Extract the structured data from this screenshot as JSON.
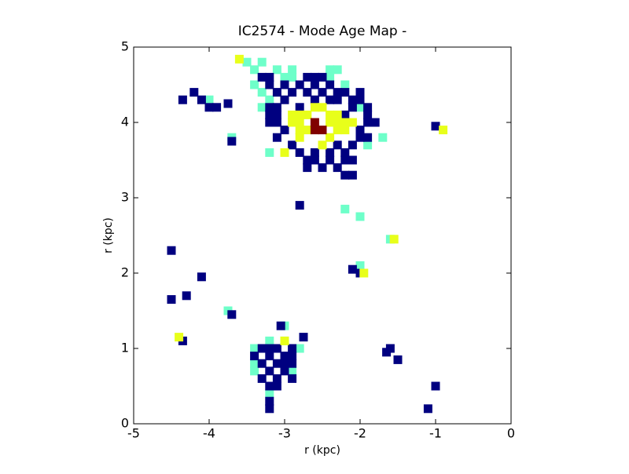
{
  "chart_data": {
    "type": "image",
    "title": "IC2574 - Mode Age Map -",
    "xlabel": "r (kpc)",
    "ylabel": "r (kpc)",
    "xlim": [
      -5,
      0
    ],
    "ylim": [
      0,
      5
    ],
    "xticks": [
      -5,
      -4,
      -3,
      -2,
      -1,
      0
    ],
    "yticks": [
      0,
      1,
      2,
      3,
      4,
      5
    ],
    "series": [
      {
        "color": "#6effc9",
        "x": [
          -3.5,
          -3.3,
          -3.4,
          -3.1,
          -2.9,
          -2.4,
          -2.3,
          -3.0,
          -2.9,
          -2.4,
          -3.4,
          -2.2,
          -3.3,
          -3.2,
          -3.3,
          -2.0,
          -1.7,
          -1.9,
          -3.2,
          -4.0,
          -3.7,
          -3.2,
          -3.0,
          -3.4,
          -2.8,
          -3.4,
          -3.4,
          -2.9,
          -3.2,
          -2.0,
          -1.6,
          -3.75,
          -3.0,
          -2.2,
          -2.0
        ],
        "y": [
          4.8,
          4.8,
          4.7,
          4.7,
          4.7,
          4.7,
          4.7,
          4.6,
          4.6,
          4.6,
          4.5,
          4.5,
          4.4,
          4.3,
          4.2,
          4.2,
          3.8,
          3.7,
          3.6,
          4.3,
          3.8,
          1.1,
          1.1,
          1.0,
          1.0,
          0.8,
          0.7,
          0.7,
          0.4,
          2.1,
          2.45,
          1.5,
          1.3,
          2.85,
          2.75
        ]
      },
      {
        "color": "#000080",
        "x": [
          -3.3,
          -3.2,
          -2.7,
          -2.6,
          -2.5,
          -3.2,
          -3.0,
          -2.8,
          -2.6,
          -2.4,
          -3.1,
          -2.9,
          -2.7,
          -2.5,
          -2.3,
          -2.2,
          -2.0,
          -3.0,
          -2.6,
          -2.4,
          -2.3,
          -2.1,
          -2.0,
          -3.2,
          -3.1,
          -2.8,
          -2.1,
          -1.9,
          -3.2,
          -3.1,
          -2.2,
          -1.9,
          -3.2,
          -3.1,
          -1.9,
          -1.8,
          -3.0,
          -2.0,
          -3.1,
          -2.0,
          -1.9,
          -2.9,
          -2.3,
          -2.1,
          -2.8,
          -2.6,
          -2.4,
          -2.2,
          -2.7,
          -2.6,
          -2.4,
          -2.2,
          -2.1,
          -2.7,
          -2.5,
          -2.3,
          -2.2,
          -2.1,
          -4.2,
          -4.1,
          -4.0,
          -3.9,
          -3.75,
          -4.35,
          -3.7,
          -1.0,
          -3.3,
          -3.2,
          -3.1,
          -2.9,
          -3.4,
          -3.2,
          -3.0,
          -2.9,
          -3.3,
          -3.1,
          -3.0,
          -2.9,
          -3.2,
          -3.0,
          -3.3,
          -3.1,
          -2.9,
          -3.2,
          -3.1,
          -3.2,
          -3.2,
          -4.5,
          -4.1,
          -2.1,
          -2.0,
          -1.6,
          -1.65,
          -1.5,
          -1.0,
          -1.1,
          -3.7,
          -4.35,
          -4.5,
          -4.3,
          -3.05,
          -2.75,
          -2.8
        ],
        "y": [
          4.6,
          4.6,
          4.6,
          4.6,
          4.6,
          4.5,
          4.5,
          4.5,
          4.5,
          4.5,
          4.4,
          4.4,
          4.4,
          4.4,
          4.4,
          4.4,
          4.4,
          4.3,
          4.3,
          4.3,
          4.3,
          4.3,
          4.3,
          4.2,
          4.2,
          4.2,
          4.2,
          4.2,
          4.1,
          4.1,
          4.1,
          4.1,
          4.0,
          4.0,
          4.0,
          4.0,
          3.9,
          3.9,
          3.8,
          3.8,
          3.8,
          3.7,
          3.7,
          3.7,
          3.6,
          3.6,
          3.6,
          3.6,
          3.5,
          3.5,
          3.5,
          3.5,
          3.5,
          3.4,
          3.4,
          3.4,
          3.3,
          3.3,
          4.4,
          4.3,
          4.2,
          4.2,
          4.25,
          4.3,
          3.75,
          3.95,
          1.0,
          1.0,
          1.0,
          1.0,
          0.9,
          0.9,
          0.9,
          0.9,
          0.8,
          0.8,
          0.8,
          0.8,
          0.7,
          0.7,
          0.6,
          0.6,
          0.6,
          0.5,
          0.5,
          0.3,
          0.2,
          2.3,
          1.95,
          2.05,
          2.0,
          1.0,
          0.95,
          0.85,
          0.5,
          0.2,
          1.45,
          1.1,
          1.65,
          1.7,
          1.3,
          1.15,
          2.9
        ]
      },
      {
        "color": "#e8ff1a",
        "x": [
          -2.9,
          -2.8,
          -2.7,
          -2.4,
          -2.3,
          -2.9,
          -2.8,
          -2.4,
          -2.3,
          -2.2,
          -2.1,
          -2.8,
          -2.7,
          -2.3,
          -2.2,
          -2.8,
          -2.4,
          -2.5,
          -2.6,
          -2.5,
          -3.0,
          -3.6,
          -0.9,
          -3.0,
          -1.95,
          -1.55,
          -4.4
        ],
        "y": [
          4.1,
          4.1,
          4.1,
          4.1,
          4.1,
          4.0,
          4.0,
          4.0,
          4.0,
          4.0,
          4.0,
          3.9,
          3.9,
          3.9,
          3.9,
          3.8,
          3.8,
          3.7,
          4.2,
          4.2,
          3.6,
          4.84,
          3.9,
          1.1,
          2.0,
          2.45,
          1.15
        ]
      },
      {
        "color": "#800000",
        "x": [
          -2.6,
          -2.5,
          -2.6
        ],
        "y": [
          3.9,
          3.9,
          4.0
        ]
      }
    ]
  }
}
